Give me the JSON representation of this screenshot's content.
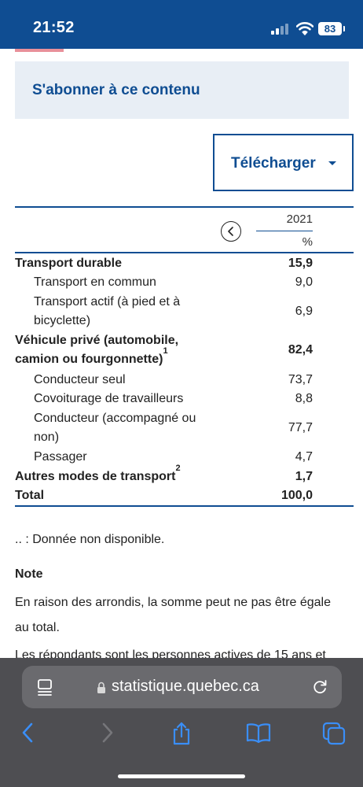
{
  "status_bar": {
    "time": "21:52",
    "battery": "83",
    "icons": [
      "signal-icon",
      "wifi-icon",
      "battery-icon"
    ],
    "background": "#0f4d92"
  },
  "subscribe": {
    "label": "S'abonner à ce contenu"
  },
  "download": {
    "label": "Télécharger"
  },
  "table": {
    "year": "2021",
    "unit": "%",
    "rows": [
      {
        "label": "Transport durable",
        "value": "15,9",
        "bold": true
      },
      {
        "label": "Transport en commun",
        "value": "9,0",
        "bold": false
      },
      {
        "label_lines": [
          "Transport actif (à pied et à",
          "bicyclette)"
        ],
        "value": "6,9",
        "bold": false
      },
      {
        "label_lines": [
          "Véhicule privé (automobile,",
          "camion ou fourgonnette)"
        ],
        "sup": "1",
        "value": "82,4",
        "bold": true
      },
      {
        "label": "Conducteur seul",
        "value": "73,7",
        "bold": false
      },
      {
        "label": "Covoiturage de travailleurs",
        "value": "8,8",
        "bold": false
      },
      {
        "label_lines": [
          "Conducteur (accompagné ou",
          "non)"
        ],
        "value": "77,7",
        "bold": false
      },
      {
        "label": "Passager",
        "value": "4,7",
        "bold": false
      },
      {
        "label": "Autres modes de transport",
        "sup": "2",
        "value": "1,7",
        "bold": true
      },
      {
        "label": "Total",
        "value": "100,0",
        "bold": true
      }
    ]
  },
  "legend": ".. : Donnée non disponible.",
  "note": {
    "title": "Note",
    "lines": [
      "En raison des arrondis, la somme peut ne pas être égale",
      "au total."
    ],
    "partial": "Les répondants sont les personnes actives de 15 ans et"
  },
  "browser": {
    "url": "statistique.quebec.ca",
    "icons": [
      "page-menu-icon",
      "lock-icon",
      "reload-icon",
      "back-icon",
      "forward-icon",
      "share-icon",
      "bookmarks-icon",
      "tabs-icon"
    ]
  }
}
